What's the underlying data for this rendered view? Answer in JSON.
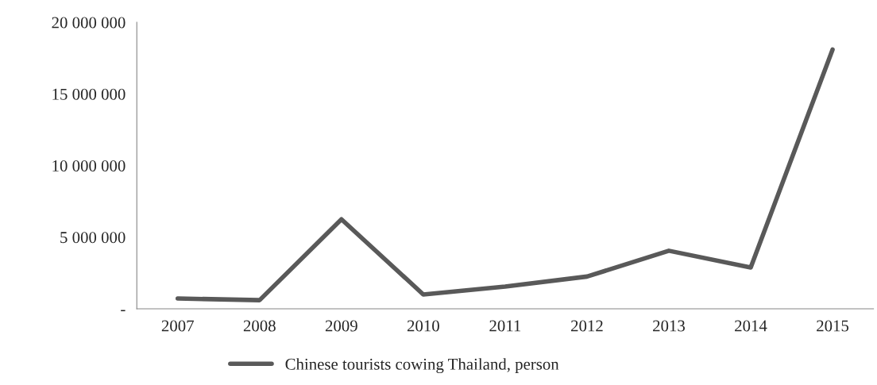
{
  "chart_data": {
    "type": "line",
    "categories": [
      "2007",
      "2008",
      "2009",
      "2010",
      "2011",
      "2012",
      "2013",
      "2014",
      "2015"
    ],
    "series": [
      {
        "name": "Chinese tourists cowing Thailand, person",
        "color": "#595959",
        "values": [
          720000,
          600000,
          6250000,
          1000000,
          1550000,
          2250000,
          4050000,
          2880000,
          18100000
        ]
      }
    ],
    "ylim": [
      0,
      20000000
    ],
    "yticks": [
      {
        "value": 0,
        "label": "-"
      },
      {
        "value": 5000000,
        "label": "5 000 000"
      },
      {
        "value": 10000000,
        "label": "10 000 000"
      },
      {
        "value": 15000000,
        "label": "15 000 000"
      },
      {
        "value": 20000000,
        "label": "20 000 000"
      }
    ],
    "grid": false,
    "legend": "bottom",
    "marker": "none",
    "line_style": "solid"
  }
}
